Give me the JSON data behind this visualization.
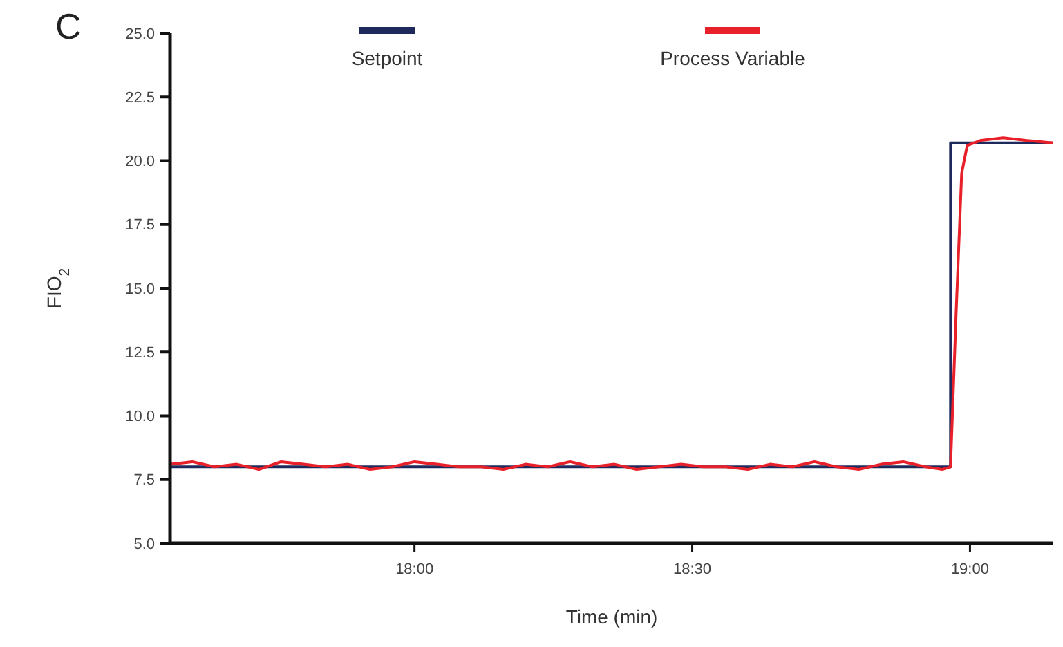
{
  "chart_data": {
    "type": "line",
    "xlabel": "Time (min)",
    "ylabel": "FIO$_{2}$",
    "annotations": [
      "C"
    ],
    "xlim": [
      17.56,
      19.15
    ],
    "xticks": [
      {
        "value": 18,
        "label": "18:00"
      },
      {
        "value": 18.5,
        "label": "18:30"
      },
      {
        "value": 19,
        "label": "19:00"
      }
    ],
    "ylim": [
      5,
      25
    ],
    "yticks": [
      {
        "value": 5,
        "label": "5.0"
      },
      {
        "value": 7.5,
        "label": "7.5"
      },
      {
        "value": 10,
        "label": "10.0"
      },
      {
        "value": 12.5,
        "label": "12.5"
      },
      {
        "value": 15,
        "label": "15.0"
      },
      {
        "value": 17.5,
        "label": "17.5"
      },
      {
        "value": 20,
        "label": "20.0"
      },
      {
        "value": 22.5,
        "label": "22.5"
      },
      {
        "value": 25,
        "label": "25.0"
      }
    ],
    "grid": false,
    "legend": "top",
    "marker": "none",
    "line_style": "solid",
    "series": [
      {
        "name": "Setpoint",
        "color": "#1f2a5c",
        "x": [
          17.56,
          18.965,
          18.965,
          19.15
        ],
        "values": [
          8.0,
          8.0,
          20.7,
          20.7
        ]
      },
      {
        "name": "Process Variable",
        "color": "#e8202a",
        "x": [
          17.56,
          17.6,
          17.64,
          17.68,
          17.72,
          17.76,
          17.8,
          17.84,
          17.88,
          17.92,
          17.96,
          18.0,
          18.04,
          18.08,
          18.12,
          18.16,
          18.2,
          18.24,
          18.28,
          18.32,
          18.36,
          18.4,
          18.44,
          18.48,
          18.52,
          18.56,
          18.6,
          18.64,
          18.68,
          18.72,
          18.76,
          18.8,
          18.84,
          18.88,
          18.92,
          18.95,
          18.965,
          18.975,
          18.985,
          18.995,
          19.02,
          19.06,
          19.1,
          19.15
        ],
        "values": [
          8.1,
          8.2,
          8.0,
          8.1,
          7.9,
          8.2,
          8.1,
          8.0,
          8.1,
          7.9,
          8.0,
          8.2,
          8.1,
          8.0,
          8.0,
          7.9,
          8.1,
          8.0,
          8.2,
          8.0,
          8.1,
          7.9,
          8.0,
          8.1,
          8.0,
          8.0,
          7.9,
          8.1,
          8.0,
          8.2,
          8.0,
          7.9,
          8.1,
          8.2,
          8.0,
          7.9,
          8.0,
          14.0,
          19.5,
          20.6,
          20.8,
          20.9,
          20.8,
          20.7
        ]
      }
    ]
  }
}
